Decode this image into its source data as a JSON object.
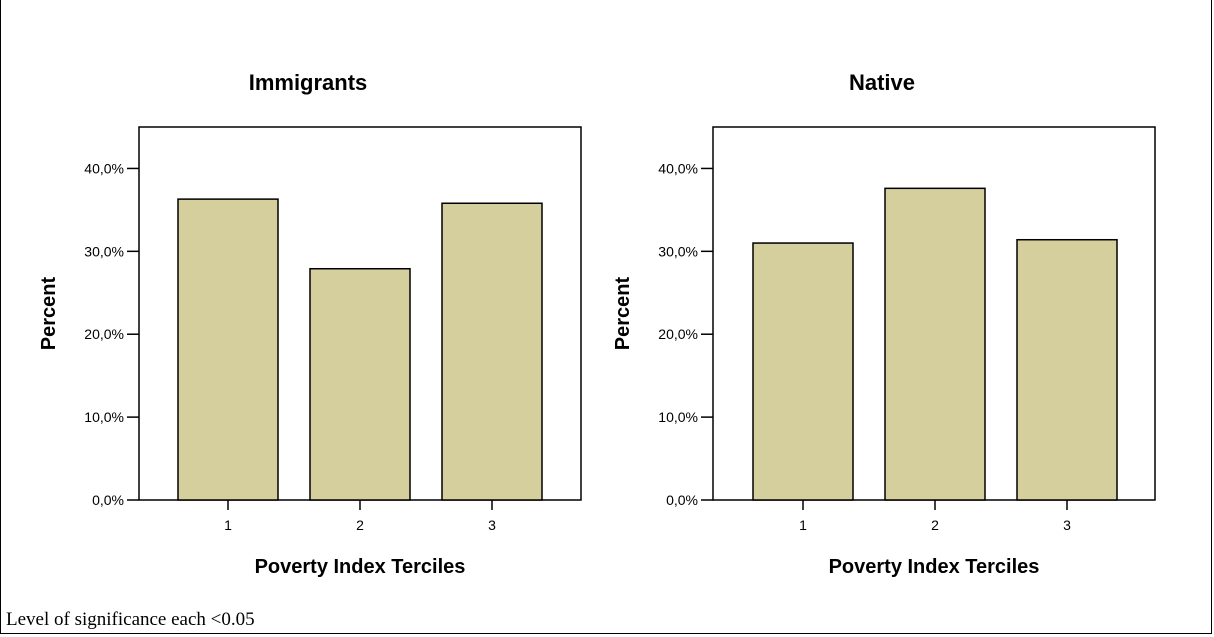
{
  "note": "Level of significance each <0.05",
  "clipped_header": "",
  "colors": {
    "bar_fill": "#d4cf9c",
    "bar_stroke": "#000000"
  },
  "chart_data": [
    {
      "type": "bar",
      "title": "Immigrants",
      "xlabel": "Poverty Index Terciles",
      "ylabel": "Percent",
      "categories": [
        "1",
        "2",
        "3"
      ],
      "values": [
        36.3,
        27.9,
        35.8
      ],
      "ylim": [
        0,
        45
      ],
      "yticks": [
        0,
        10,
        20,
        30,
        40
      ],
      "ytick_labels": [
        "0,0%",
        "10,0%",
        "20,0%",
        "30,0%",
        "40,0%"
      ],
      "grid": false,
      "legend": "none"
    },
    {
      "type": "bar",
      "title": "Native",
      "xlabel": "Poverty Index Terciles",
      "ylabel": "Percent",
      "categories": [
        "1",
        "2",
        "3"
      ],
      "values": [
        31.0,
        37.6,
        31.4
      ],
      "ylim": [
        0,
        45
      ],
      "yticks": [
        0,
        10,
        20,
        30,
        40
      ],
      "ytick_labels": [
        "0,0%",
        "10,0%",
        "20,0%",
        "30,0%",
        "40,0%"
      ],
      "grid": false,
      "legend": "none"
    }
  ]
}
